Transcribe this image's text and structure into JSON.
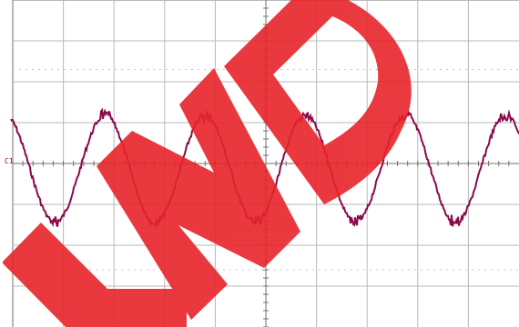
{
  "screen": {
    "background": "#ffffff",
    "grid_color": "#b8b8b8",
    "dotted_color": "#c8c8c8",
    "axis_color": "#707070",
    "divisions_x": 10,
    "divisions_y": 8
  },
  "channel": {
    "marker_label": "C1",
    "trace_color": "#8b0a4a",
    "waveform": "noisy sine"
  },
  "watermark": {
    "text": "END",
    "color": "#e8242a"
  }
}
